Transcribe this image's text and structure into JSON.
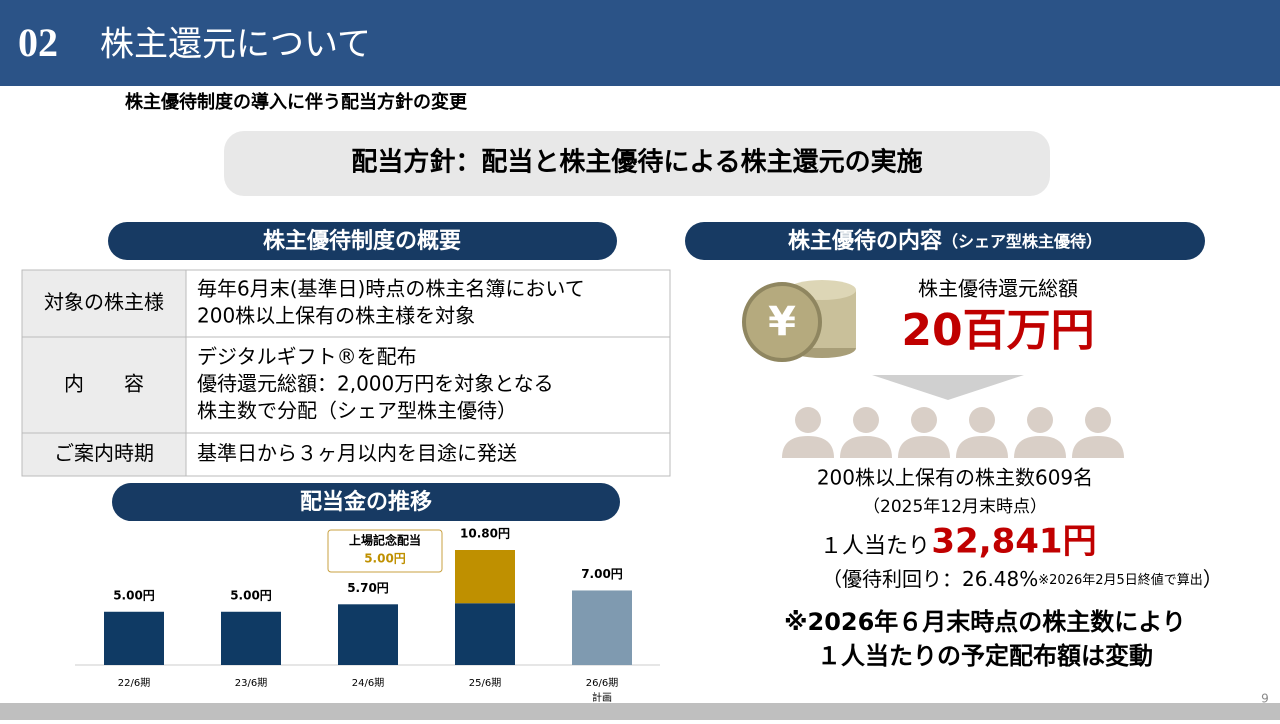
{
  "header": {
    "number": "02",
    "title": "株主還元について"
  },
  "subtitle": "株主優待制度の導入に伴う配当方針の変更",
  "policy": "配当方針：配当と株主優待による株主還元の実施",
  "overview": {
    "title": "株主優待制度の概要",
    "rows": [
      {
        "label": "対象の株主様",
        "lines": [
          "毎年6月末(基準日)時点の株主名簿において",
          "200株以上保有の株主様を対象"
        ]
      },
      {
        "label": "内　　容",
        "lines": [
          "デジタルギフト®を配布",
          "優待還元総額：2,000万円を対象となる",
          "株主数で分配（シェア型株主優待）"
        ]
      },
      {
        "label": "ご案内時期",
        "lines": [
          "基準日から３ヶ月以内を目途に発送"
        ]
      }
    ]
  },
  "chart_data": {
    "type": "bar",
    "title": "配当金の推移",
    "categories": [
      "22/6期",
      "23/6期",
      "24/6期",
      "25/6期",
      "26/6期"
    ],
    "category_note": "計画",
    "series": [
      {
        "color": "#0f3a64",
        "values": [
          5.0,
          5.0,
          5.7,
          5.8,
          7.0
        ]
      },
      {
        "color": "#bf9000",
        "values": [
          null,
          null,
          null,
          5.0,
          null
        ],
        "value_labels": [
          null,
          null,
          null,
          "5.00円",
          null
        ]
      }
    ],
    "bar_colors": [
      "#0f3a64",
      "#0f3a64",
      "#0f3a64",
      "#0f3a64",
      "#7f9ab0"
    ],
    "totals": [
      5.0,
      5.0,
      5.7,
      10.8,
      7.0
    ],
    "total_labels": [
      "5.00円",
      "5.00円",
      "5.70円",
      "10.80円",
      "7.00円"
    ],
    "annotation": "上場記念配当"
  },
  "benefit": {
    "title": "株主優待の内容",
    "title_note": "（シェア型株主優待）",
    "total_label": "株主優待還元総額",
    "total": "20百万円",
    "holders": "200株以上保有の株主数609名",
    "as_of": "（2025年12月末時点）",
    "per_person_label": "１人当たり",
    "per_person": "32,841円",
    "yield": "（優待利回り：26.48%",
    "yield_note": "※2026年2月5日終値で算出",
    "yield_close": "）",
    "notice": [
      "※2026年６月末時点の株主数により",
      "１人当たりの予定配布額は変動"
    ]
  },
  "page": "9"
}
